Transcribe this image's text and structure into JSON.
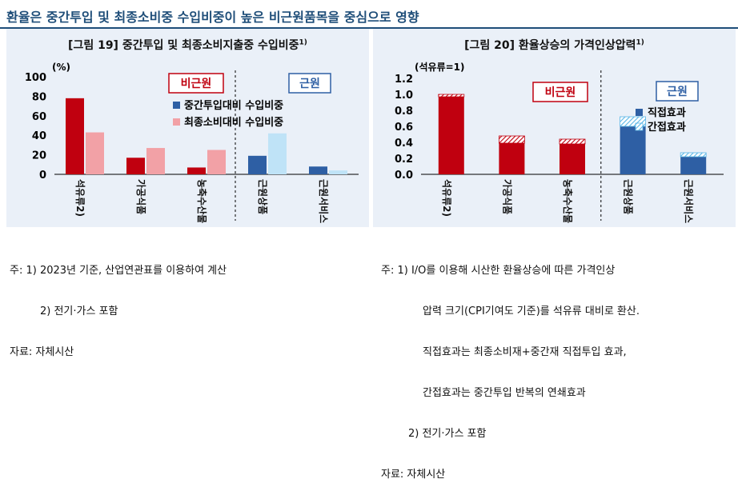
{
  "header": {
    "title": "환율은 중간투입 및 최종소비중 수입비중이 높은 비근원품목을 중심으로 영향"
  },
  "chart_data": [
    {
      "type": "bar",
      "title": "[그림 19]  중간투입 및 최종소비지출중 수입비중",
      "title_sup": "1)",
      "ylabel": "(%)",
      "ylim": [
        0,
        100
      ],
      "yticks": [
        "0",
        "20",
        "40",
        "60",
        "80",
        "100"
      ],
      "categories": [
        "석유류2)",
        "가공식품",
        "농축수산물",
        "근원상품",
        "근원서비스"
      ],
      "series": [
        {
          "name": "중간투입대비 수입비중",
          "values": [
            78,
            17,
            7,
            19,
            8
          ]
        },
        {
          "name": "최종소비대비 수입비중",
          "values": [
            43,
            27,
            25,
            42,
            4
          ]
        }
      ],
      "group_labels": [
        "비근원",
        "근원"
      ],
      "legend": "right",
      "colors": {
        "s1_noncore": "#c0000f",
        "s2_noncore": "#f2a1a6",
        "s1_core": "#2e5fa4",
        "s2_core": "#bfe3f7"
      }
    },
    {
      "type": "bar",
      "stacked": true,
      "title": "[그림 20]  환율상승의 가격인상압력",
      "title_sup": "1)",
      "ylabel": "(석유류=1)",
      "ylim": [
        0,
        1.2
      ],
      "yticks": [
        "0.0",
        "0.2",
        "0.4",
        "0.6",
        "0.8",
        "1.0",
        "1.2"
      ],
      "categories": [
        "석유류2)",
        "가공식품",
        "농축수산물",
        "근원상품",
        "근원서비스"
      ],
      "series": [
        {
          "name": "직접효과",
          "values": [
            0.97,
            0.39,
            0.38,
            0.6,
            0.22
          ]
        },
        {
          "name": "간접효과",
          "values": [
            0.03,
            0.09,
            0.06,
            0.12,
            0.05
          ]
        }
      ],
      "group_labels": [
        "비근원",
        "근원"
      ],
      "legend": "right",
      "colors": {
        "noncore": "#c0000f",
        "core": "#2e5fa4",
        "hatch_core": "#5bb6e6"
      }
    }
  ],
  "notes_left": {
    "line1": "주: 1) 2023년 기준, 산업연관표를 이용하여 계산",
    "line2": "2) 전기·가스 포함",
    "line3": "자료: 자체시산"
  },
  "notes_right": {
    "line1": "주: 1) I/O를 이용해 시산한 환율상승에 따른 가격인상",
    "line2": "압력 크기(CPI기여도 기준)를 석유류 대비로 환산.",
    "line3": "직접효과는 최종소비재+중간재 직접투입 효과,",
    "line4": "간접효과는 중간투입 반복의 연쇄효과",
    "line5": "2) 전기·가스 포함",
    "line6": "자료: 자체시산"
  }
}
